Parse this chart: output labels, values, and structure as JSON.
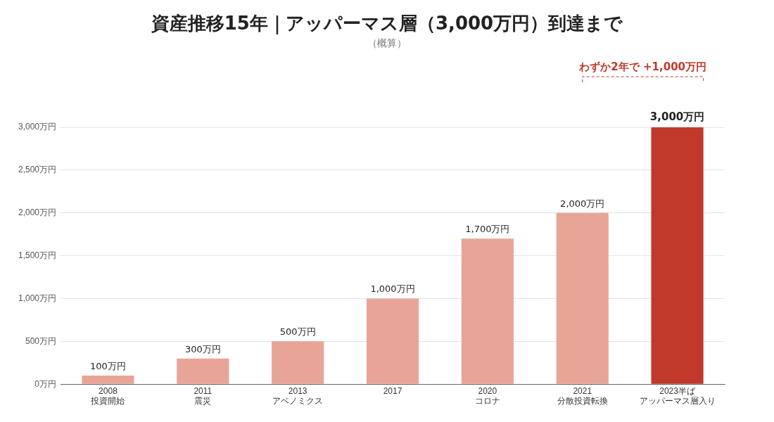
{
  "chart_data": {
    "type": "bar",
    "title": "資産推移15年｜アッパーマス層（3,000万円）到達まで",
    "subtitle": "（概算）",
    "categories": [
      "2008\n投資開始",
      "2011\n震災",
      "2013\nアベノミクス",
      "2017",
      "2020\nコロナ",
      "2021\n分散投資転換",
      "2023半ばアッパーマス層入り"
    ],
    "values": [
      100,
      300,
      500,
      1000,
      1700,
      2000,
      3000
    ],
    "colors": [
      "#e8a597",
      "#e8a597",
      "#e8a597",
      "#e8a597",
      "#e8a597",
      "#e8a597",
      "#c0392b"
    ],
    "value_labels": [
      "100万円",
      "300万円",
      "500万円",
      "1,000万円",
      "1,700万円",
      "2,000万円",
      "3,000万円"
    ],
    "ylim": [
      0,
      3000
    ],
    "yticks": [
      {
        "value": 0,
        "label": "0万円"
      },
      {
        "value": 500,
        "label": "500万円"
      },
      {
        "value": 1000,
        "label": "1,000万円"
      },
      {
        "value": 1500,
        "label": "1,500万円"
      },
      {
        "value": 2000,
        "label": "2,000万円"
      },
      {
        "value": 2500,
        "label": "2,500万円"
      },
      {
        "value": 3000,
        "label": "3,000万円"
      }
    ],
    "grid": "y",
    "legend": false,
    "annotations": [
      "わずか2年で +1,000万円"
    ]
  }
}
